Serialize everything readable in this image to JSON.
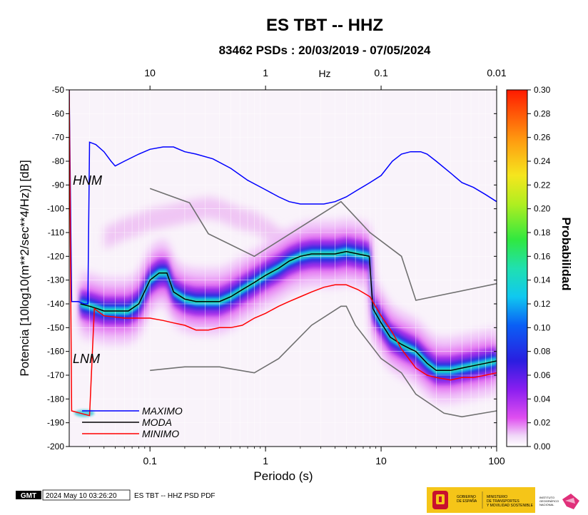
{
  "chart_data": {
    "type": "heatmap",
    "title": "ES TBT -- HHZ",
    "subtitle": "83462 PSDs : 20/03/2019 - 07/05/2024",
    "xlabel": "Periodo (s)",
    "ylabel": "Potencia [10log10(m**2/sec**4/Hz)] [dB]",
    "x_scale": "log",
    "xlim": [
      0.02,
      100
    ],
    "ylim": [
      -200,
      -50
    ],
    "x_ticks": [
      0.1,
      1,
      10,
      100
    ],
    "x_tick_labels": [
      "0.1",
      "1",
      "10",
      "100"
    ],
    "y_ticks": [
      -200,
      -190,
      -180,
      -170,
      -160,
      -150,
      -140,
      -130,
      -120,
      -110,
      -100,
      -90,
      -80,
      -70,
      -60,
      -50
    ],
    "top_axis_label": "Hz",
    "top_ticks": [
      10,
      1,
      0.1,
      0.01
    ],
    "top_tick_labels": [
      "10",
      "1",
      "0.1",
      "0.01"
    ],
    "colorbar": {
      "label": "Probabilidad",
      "min": 0.0,
      "max": 0.3,
      "ticks": [
        "0.00",
        "0.02",
        "0.04",
        "0.06",
        "0.08",
        "0.10",
        "0.12",
        "0.14",
        "0.16",
        "0.18",
        "0.20",
        "0.22",
        "0.24",
        "0.26",
        "0.28",
        "0.30"
      ]
    },
    "models": {
      "hnm_label": "HNM",
      "lnm_label": "LNM"
    },
    "series": [
      {
        "name": "MAXIMO",
        "color": "#0000ff",
        "x": [
          0.02,
          0.021,
          0.024,
          0.027,
          0.029,
          0.03,
          0.034,
          0.04,
          0.046,
          0.05,
          0.06,
          0.08,
          0.1,
          0.13,
          0.16,
          0.2,
          0.25,
          0.35,
          0.5,
          0.7,
          1.0,
          1.3,
          1.6,
          2.0,
          2.5,
          3.2,
          4.0,
          5.0,
          6.3,
          8.0,
          10,
          12.5,
          15,
          18,
          22,
          25,
          30,
          40,
          50,
          63,
          80,
          100
        ],
        "y": [
          -50,
          -139,
          -139,
          -140,
          -140,
          -72,
          -73,
          -76,
          -80,
          -82,
          -80,
          -77,
          -75,
          -74,
          -74,
          -76,
          -77,
          -79,
          -83,
          -88,
          -92,
          -95,
          -97,
          -98,
          -98,
          -98,
          -97,
          -95,
          -92,
          -89,
          -86,
          -80,
          -77,
          -76,
          -76,
          -77,
          -80,
          -85,
          -89,
          -91,
          -94,
          -97
        ]
      },
      {
        "name": "MODA",
        "color": "#000000",
        "x": [
          0.025,
          0.03,
          0.035,
          0.04,
          0.05,
          0.065,
          0.08,
          0.1,
          0.12,
          0.14,
          0.16,
          0.2,
          0.25,
          0.32,
          0.4,
          0.5,
          0.63,
          0.8,
          1.0,
          1.3,
          1.6,
          2.0,
          2.5,
          3.2,
          4.0,
          5.0,
          6.3,
          7.9,
          8.5,
          10,
          12,
          15,
          18,
          20,
          25,
          30,
          40,
          50,
          63,
          80,
          100
        ],
        "y": [
          -140,
          -141,
          -142,
          -143,
          -143,
          -143,
          -140,
          -130,
          -127,
          -127,
          -135,
          -138,
          -139,
          -139,
          -139,
          -137,
          -134,
          -131,
          -128,
          -125,
          -122,
          -120,
          -119,
          -119,
          -119,
          -118,
          -119,
          -120,
          -142,
          -148,
          -154,
          -157,
          -159,
          -160,
          -165,
          -168,
          -168,
          -167,
          -166,
          -165,
          -164
        ]
      },
      {
        "name": "MINIMO",
        "color": "#ff0000",
        "x": [
          0.02,
          0.021,
          0.025,
          0.03,
          0.033,
          0.04,
          0.06,
          0.08,
          0.1,
          0.13,
          0.16,
          0.2,
          0.25,
          0.32,
          0.4,
          0.5,
          0.63,
          0.8,
          1.0,
          1.3,
          1.6,
          2.0,
          2.5,
          3.2,
          4.0,
          5.0,
          6.3,
          8.0,
          10,
          12.5,
          15,
          20,
          25,
          30,
          40,
          50,
          63,
          80,
          100
        ],
        "y": [
          -50,
          -185,
          -186,
          -187,
          -142,
          -145,
          -146,
          -146,
          -146,
          -147,
          -148,
          -149,
          -151,
          -151,
          -150,
          -150,
          -149,
          -146,
          -144,
          -141,
          -139,
          -137,
          -135,
          -133,
          -132,
          -132,
          -134,
          -137,
          -145,
          -152,
          -159,
          -167,
          -170,
          -171,
          -172,
          -171,
          -171,
          -170,
          -169
        ]
      }
    ],
    "reference_models": [
      {
        "id": "HNM",
        "x": [
          0.1,
          0.22,
          0.32,
          0.8,
          4.5,
          8,
          15,
          20,
          100
        ],
        "y": [
          -91.5,
          -97.5,
          -110.5,
          -120,
          -97,
          -110,
          -120,
          -138.5,
          -131.5
        ]
      },
      {
        "id": "LNM",
        "x": [
          0.1,
          0.2,
          0.4,
          0.8,
          1.3,
          2.5,
          4.5,
          5,
          6,
          10,
          15,
          20,
          35,
          50,
          100
        ],
        "y": [
          -168,
          -166.5,
          -166.5,
          -169,
          -163,
          -149,
          -141,
          -141,
          -149,
          -163,
          -169,
          -178,
          -186,
          -187.5,
          -185
        ]
      }
    ]
  },
  "legend": {
    "maximo": "MAXIMO",
    "moda": "MODA",
    "minimo": "MINIMO"
  },
  "footer": {
    "gmt_logo": "GMT",
    "timestamp": "2024 May 10 03:26:20",
    "caption": "ES TBT -- HHZ PSD PDF",
    "gov_line1": "GOBIERNO",
    "gov_line2": "DE ESPAÑA",
    "ministry_line1": "MINISTERIO",
    "ministry_line2": "DE TRANSPORTES",
    "ministry_line3": "Y MOVILIDAD SOSTENIBLE",
    "ign_line1": "INSTITUTO",
    "ign_line2": "GEOGRÁFICO",
    "ign_line3": "NACIONAL",
    "bg_color": "#f5c518"
  }
}
